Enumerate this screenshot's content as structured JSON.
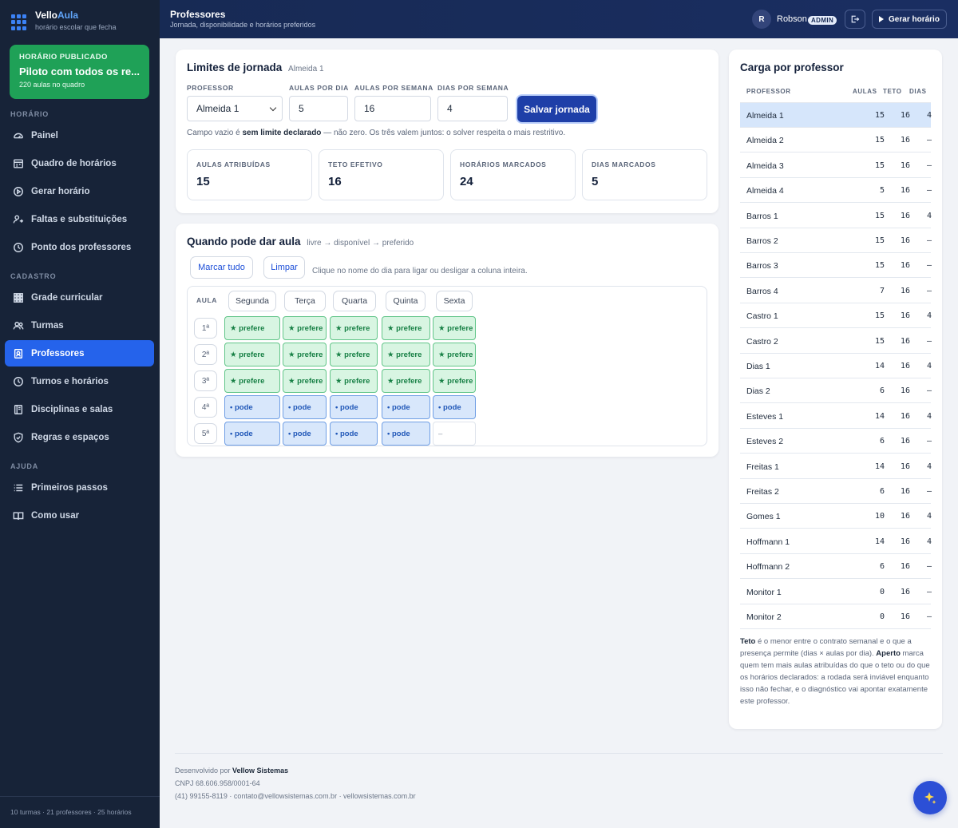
{
  "brand": {
    "name_a": "Vello",
    "name_b": "Aula",
    "tagline": "horário escolar que fecha"
  },
  "published": {
    "label": "HORÁRIO PUBLICADO",
    "title": "Piloto com todos os re...",
    "sub": "220 aulas no quadro"
  },
  "nav": {
    "sections": [
      "HORÁRIO",
      "CADASTRO",
      "AJUDA"
    ],
    "items": [
      {
        "label": "Painel",
        "icon": "gauge-icon"
      },
      {
        "label": "Quadro de horários",
        "icon": "calendar-board-icon"
      },
      {
        "label": "Gerar horário",
        "icon": "play-circle-icon"
      },
      {
        "label": "Faltas e substituições",
        "icon": "user-swap-icon"
      },
      {
        "label": "Ponto dos professores",
        "icon": "clock-icon"
      },
      {
        "label": "Grade curricular",
        "icon": "grid-icon"
      },
      {
        "label": "Turmas",
        "icon": "users-icon"
      },
      {
        "label": "Professores",
        "icon": "id-badge-icon"
      },
      {
        "label": "Turnos e horários",
        "icon": "clock-icon"
      },
      {
        "label": "Disciplinas e salas",
        "icon": "book-icon"
      },
      {
        "label": "Regras e espaços",
        "icon": "shield-icon"
      },
      {
        "label": "Primeiros passos",
        "icon": "list-icon"
      },
      {
        "label": "Como usar",
        "icon": "open-book-icon"
      }
    ]
  },
  "sidebar_footer": "10 turmas · 21 professores · 25 horários",
  "header": {
    "title": "Professores",
    "subtitle": "Jornada, disponibilidade e horários preferidos",
    "user_initial": "R",
    "user_name": "Robson",
    "role": "ADMIN",
    "generate_label": "Gerar horário"
  },
  "limits": {
    "title": "Limites de jornada",
    "teacher_tag": "Almeida 1",
    "labels": {
      "professor": "PROFESSOR",
      "per_day": "AULAS POR DIA",
      "per_week": "AULAS POR SEMANA",
      "days_week": "DIAS POR SEMANA"
    },
    "values": {
      "professor": "Almeida 1",
      "per_day": "5",
      "per_week": "16",
      "days_week": "4"
    },
    "save_label": "Salvar jornada",
    "help_a": "Campo vazio é ",
    "help_b": "sem limite declarado",
    "help_c": " — não zero. Os três valem juntos: o solver respeita o mais restritivo.",
    "stats": [
      {
        "label": "AULAS ATRIBUÍDAS",
        "value": "15"
      },
      {
        "label": "TETO EFETIVO",
        "value": "16"
      },
      {
        "label": "HORÁRIOS MARCADOS",
        "value": "24"
      },
      {
        "label": "DIAS MARCADOS",
        "value": "5"
      }
    ]
  },
  "availability": {
    "title": "Quando pode dar aula",
    "legend": "livre → disponível → preferido",
    "mark_all": "Marcar tudo",
    "clear": "Limpar",
    "hint": "Clique no nome do dia para ligar ou desligar a coluna inteira.",
    "aula_label": "AULA",
    "days": [
      "Segunda",
      "Terça",
      "Quarta",
      "Quinta",
      "Sexta"
    ],
    "rows": [
      {
        "label": "1ª",
        "cells": [
          "★ prefere",
          "★ prefere",
          "★ prefere",
          "★ prefere",
          "★ prefere"
        ],
        "states": [
          "prefere",
          "prefere",
          "prefere",
          "prefere",
          "prefere"
        ]
      },
      {
        "label": "2ª",
        "cells": [
          "★ prefere",
          "★ prefere",
          "★ prefere",
          "★ prefere",
          "★ prefere"
        ],
        "states": [
          "prefere",
          "prefere",
          "prefere",
          "prefere",
          "prefere"
        ]
      },
      {
        "label": "3ª",
        "cells": [
          "★ prefere",
          "★ prefere",
          "★ prefere",
          "★ prefere",
          "★ prefere"
        ],
        "states": [
          "prefere",
          "prefere",
          "prefere",
          "prefere",
          "prefere"
        ]
      },
      {
        "label": "4ª",
        "cells": [
          "• pode",
          "• pode",
          "• pode",
          "• pode",
          "• pode"
        ],
        "states": [
          "pode",
          "pode",
          "pode",
          "pode",
          "pode"
        ]
      },
      {
        "label": "5ª",
        "cells": [
          "• pode",
          "• pode",
          "• pode",
          "• pode",
          "–"
        ],
        "states": [
          "pode",
          "pode",
          "pode",
          "pode",
          "livre"
        ]
      }
    ]
  },
  "load": {
    "title": "Carga por professor",
    "headers": [
      "PROFESSOR",
      "AULAS",
      "TETO",
      "DIAS"
    ],
    "rows": [
      [
        "Almeida 1",
        "15",
        "16",
        "4"
      ],
      [
        "Almeida 2",
        "15",
        "16",
        "–"
      ],
      [
        "Almeida 3",
        "15",
        "16",
        "–"
      ],
      [
        "Almeida 4",
        "5",
        "16",
        "–"
      ],
      [
        "Barros 1",
        "15",
        "16",
        "4"
      ],
      [
        "Barros 2",
        "15",
        "16",
        "–"
      ],
      [
        "Barros 3",
        "15",
        "16",
        "–"
      ],
      [
        "Barros 4",
        "7",
        "16",
        "–"
      ],
      [
        "Castro 1",
        "15",
        "16",
        "4"
      ],
      [
        "Castro 2",
        "15",
        "16",
        "–"
      ],
      [
        "Dias 1",
        "14",
        "16",
        "4"
      ],
      [
        "Dias 2",
        "6",
        "16",
        "–"
      ],
      [
        "Esteves 1",
        "14",
        "16",
        "4"
      ],
      [
        "Esteves 2",
        "6",
        "16",
        "–"
      ],
      [
        "Freitas 1",
        "14",
        "16",
        "4"
      ],
      [
        "Freitas 2",
        "6",
        "16",
        "–"
      ],
      [
        "Gomes 1",
        "10",
        "16",
        "4"
      ],
      [
        "Hoffmann 1",
        "14",
        "16",
        "4"
      ],
      [
        "Hoffmann 2",
        "6",
        "16",
        "–"
      ],
      [
        "Monitor 1",
        "0",
        "16",
        "–"
      ],
      [
        "Monitor 2",
        "0",
        "16",
        "–"
      ]
    ],
    "note_a": "Teto",
    "note_b": " é o menor entre o contrato semanal e o que a presença permite (dias × aulas por dia). ",
    "note_c": "Aperto",
    "note_d": " marca quem tem mais aulas atribuídas do que o teto ou do que os horários declarados: a rodada será inviável enquanto isso não fechar, e o diagnóstico vai apontar exatamente este professor."
  },
  "footer": {
    "dev_prefix": "Desenvolvido por ",
    "dev_name": "Vellow Sistemas",
    "cnpj": "CNPJ 68.606.958/0001-64",
    "contact": "(41) 99155-8119 · contato@vellowsistemas.com.br · vellowsistemas.com.br"
  },
  "colors": {
    "sidebar": "#172338",
    "accent": "#2563eb",
    "published": "#1fa157",
    "prefere": "#d8f5e2",
    "pode": "#d8e7fb"
  }
}
